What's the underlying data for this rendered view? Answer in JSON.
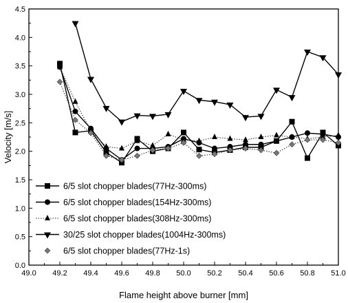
{
  "chart_data": {
    "type": "line",
    "title": "",
    "xlabel": "Flame height above burner [mm]",
    "ylabel": "Velocity [m/s]",
    "xlim": [
      49.0,
      51.0
    ],
    "ylim": [
      0.0,
      4.5
    ],
    "x_ticks": [
      "49.0",
      "49.2",
      "49.4",
      "49.6",
      "49.8",
      "50.0",
      "50.2",
      "50.4",
      "50.6",
      "50.8",
      "51.0"
    ],
    "y_ticks": [
      "0.0",
      "0.5",
      "1.0",
      "1.5",
      "2.0",
      "2.5",
      "3.0",
      "3.5",
      "4.0",
      "4.5"
    ],
    "grid": false,
    "legend_position": "bottom-left",
    "x": [
      49.2,
      49.3,
      49.4,
      49.5,
      49.6,
      49.7,
      49.8,
      49.9,
      50.0,
      50.1,
      50.2,
      50.3,
      50.4,
      50.5,
      50.6,
      50.7,
      50.8,
      50.9,
      51.0
    ],
    "series": [
      {
        "name": "6/5 slot chopper blades(77Hz-300ms)",
        "marker": "square",
        "line": "solid",
        "values": [
          3.54,
          2.33,
          2.36,
          1.98,
          1.8,
          2.22,
          2.0,
          2.05,
          2.33,
          2.03,
          1.98,
          2.02,
          2.07,
          2.07,
          2.18,
          2.52,
          1.88,
          2.33,
          2.1
        ]
      },
      {
        "name": "6/5 slot chopper blades(154Hz-300ms)",
        "marker": "circle",
        "line": "solid",
        "values": [
          3.48,
          2.7,
          2.4,
          2.05,
          1.85,
          2.05,
          2.05,
          2.08,
          2.22,
          2.15,
          2.05,
          2.08,
          2.12,
          2.12,
          2.18,
          2.25,
          2.32,
          2.3,
          2.25
        ]
      },
      {
        "name": "6/5 slot chopper blades(308Hz-300ms)",
        "marker": "triangle-up",
        "line": "dotted",
        "values": [
          3.48,
          2.87,
          2.36,
          2.08,
          2.05,
          2.18,
          2.1,
          2.3,
          2.2,
          2.18,
          2.25,
          2.22,
          2.2,
          2.25,
          2.28,
          2.25,
          2.22,
          2.25,
          2.28
        ]
      },
      {
        "name": "30/25 slot chopper blades(1004Hz-300ms)",
        "marker": "triangle-down",
        "line": "solid",
        "values": [
          null,
          4.25,
          3.27,
          2.76,
          2.52,
          2.63,
          2.62,
          2.65,
          3.06,
          2.9,
          2.87,
          2.82,
          2.6,
          2.62,
          3.08,
          2.95,
          3.75,
          3.65,
          3.35
        ]
      },
      {
        "name": "6/5 slot chopper blades(77Hz-1s)",
        "marker": "diamond",
        "line": "dotted",
        "values": [
          3.22,
          2.55,
          2.32,
          1.92,
          1.85,
          1.92,
          2.02,
          2.05,
          2.15,
          1.92,
          1.95,
          2.02,
          2.05,
          2.02,
          1.97,
          2.12,
          2.2,
          2.2,
          2.15
        ]
      }
    ]
  },
  "colors": {
    "ink": "#000000",
    "marker_gray": "#777777"
  }
}
